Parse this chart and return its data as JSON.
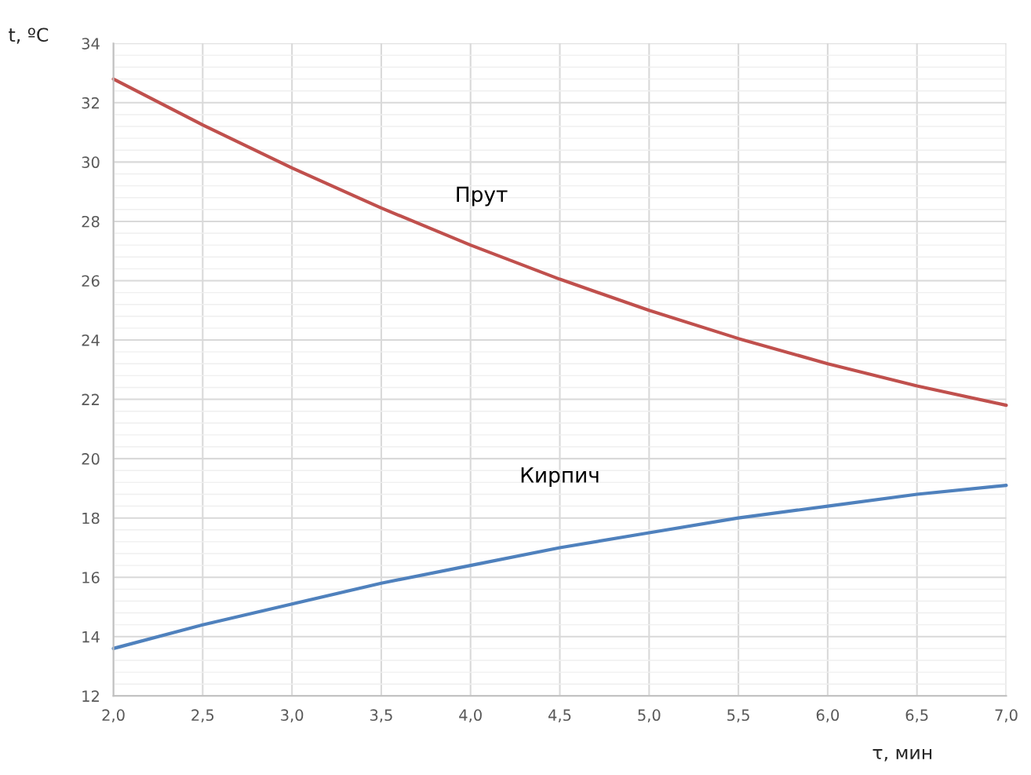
{
  "chart_data": {
    "type": "line",
    "xlabel": "τ, мин",
    "ylabel": "t, ºC",
    "x": [
      2.0,
      2.5,
      3.0,
      3.5,
      4.0,
      4.5,
      5.0,
      5.5,
      6.0,
      6.5,
      7.0
    ],
    "series": [
      {
        "name": "Прут",
        "color": "#c0504d",
        "values": [
          32.8,
          31.25,
          29.8,
          28.45,
          27.2,
          26.05,
          25.0,
          24.05,
          23.2,
          22.45,
          21.8
        ]
      },
      {
        "name": "Кирпич",
        "color": "#4f81bd",
        "values": [
          13.6,
          14.4,
          15.1,
          15.8,
          16.4,
          17.0,
          17.5,
          18.0,
          18.4,
          18.8,
          19.1
        ]
      }
    ],
    "xlim": [
      2.0,
      7.0
    ],
    "xticks": [
      {
        "value": 2.0,
        "label": "2,0"
      },
      {
        "value": 2.5,
        "label": "2,5"
      },
      {
        "value": 3.0,
        "label": "3,0"
      },
      {
        "value": 3.5,
        "label": "3,5"
      },
      {
        "value": 4.0,
        "label": "4,0"
      },
      {
        "value": 4.5,
        "label": "4,5"
      },
      {
        "value": 5.0,
        "label": "5,0"
      },
      {
        "value": 5.5,
        "label": "5,5"
      },
      {
        "value": 6.0,
        "label": "6,0"
      },
      {
        "value": 6.5,
        "label": "6,5"
      },
      {
        "value": 7.0,
        "label": "7,0"
      }
    ],
    "ylim": [
      12,
      34
    ],
    "yticks": [
      12,
      14,
      16,
      18,
      20,
      22,
      24,
      26,
      28,
      30,
      32,
      34
    ],
    "grid": true,
    "legend": false,
    "marker": "none",
    "line_style": "solid"
  }
}
